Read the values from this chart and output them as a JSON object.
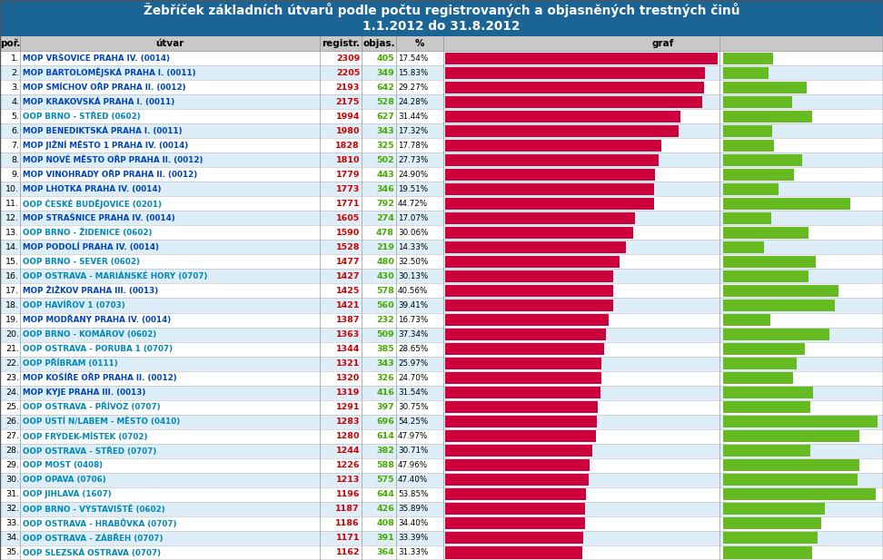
{
  "title_line1": "Žebříček základních útvarů podle počtu registrovaných a objasněných trestných činů",
  "title_line2": "1.1.2012 do 31.8.2012",
  "header_bg": "#1a6496",
  "col_header_bg": "#c8c8c8",
  "row_bg_even": "#ffffff",
  "row_bg_odd": "#ddeef8",
  "red_bar_color": "#cc003c",
  "green_bar_color": "#66bb22",
  "text_color_red": "#cc0000",
  "text_color_green": "#44aa00",
  "text_color_mop": "#0044bb",
  "text_color_oop": "#0088bb",
  "rows": [
    {
      "por": 1,
      "utvar": "MOP VRŠOVICE PRAHA IV. (0014)",
      "registr": 2309,
      "objas": 405,
      "pct": 17.54
    },
    {
      "por": 2,
      "utvar": "MOP BARTOLOMĚJSKÁ PRAHA I. (0011)",
      "registr": 2205,
      "objas": 349,
      "pct": 15.83
    },
    {
      "por": 3,
      "utvar": "MOP SMÍCHOV OŘP PRAHA II. (0012)",
      "registr": 2193,
      "objas": 642,
      "pct": 29.27
    },
    {
      "por": 4,
      "utvar": "MOP KRAKOVSKÁ PRAHA I. (0011)",
      "registr": 2175,
      "objas": 528,
      "pct": 24.28
    },
    {
      "por": 5,
      "utvar": "OOP BRNO - STŘED (0602)",
      "registr": 1994,
      "objas": 627,
      "pct": 31.44
    },
    {
      "por": 6,
      "utvar": "MOP BENEDIKTSKÁ PRAHA I. (0011)",
      "registr": 1980,
      "objas": 343,
      "pct": 17.32
    },
    {
      "por": 7,
      "utvar": "MOP JIŽNÍ MĚSTO 1 PRAHA IV. (0014)",
      "registr": 1828,
      "objas": 325,
      "pct": 17.78
    },
    {
      "por": 8,
      "utvar": "MOP NOVÉ MĚSTO OŘP PRAHA II. (0012)",
      "registr": 1810,
      "objas": 502,
      "pct": 27.73
    },
    {
      "por": 9,
      "utvar": "MOP VINOHRADY OŘP PRAHA II. (0012)",
      "registr": 1779,
      "objas": 443,
      "pct": 24.9
    },
    {
      "por": 10,
      "utvar": "MOP LHOTKA PRAHA IV. (0014)",
      "registr": 1773,
      "objas": 346,
      "pct": 19.51
    },
    {
      "por": 11,
      "utvar": "OOP ČESKÉ BUDĚJOVICE (0201)",
      "registr": 1771,
      "objas": 792,
      "pct": 44.72
    },
    {
      "por": 12,
      "utvar": "MOP STRAŠNICE PRAHA IV. (0014)",
      "registr": 1605,
      "objas": 274,
      "pct": 17.07
    },
    {
      "por": 13,
      "utvar": "OOP BRNO - ŽIDENICE (0602)",
      "registr": 1590,
      "objas": 478,
      "pct": 30.06
    },
    {
      "por": 14,
      "utvar": "MOP PODOLÍ PRAHA IV. (0014)",
      "registr": 1528,
      "objas": 219,
      "pct": 14.33
    },
    {
      "por": 15,
      "utvar": "OOP BRNO - SEVER (0602)",
      "registr": 1477,
      "objas": 480,
      "pct": 32.5
    },
    {
      "por": 16,
      "utvar": "OOP OSTRAVA - MARIÁNSKÉ HORY (0707)",
      "registr": 1427,
      "objas": 430,
      "pct": 30.13
    },
    {
      "por": 17,
      "utvar": "MOP ŽIŽKOV PRAHA III. (0013)",
      "registr": 1425,
      "objas": 578,
      "pct": 40.56
    },
    {
      "por": 18,
      "utvar": "OOP HAVÍŘOV 1 (0703)",
      "registr": 1421,
      "objas": 560,
      "pct": 39.41
    },
    {
      "por": 19,
      "utvar": "MOP MODŘANY PRAHA IV. (0014)",
      "registr": 1387,
      "objas": 232,
      "pct": 16.73
    },
    {
      "por": 20,
      "utvar": "OOP BRNO - KOMÁROV (0602)",
      "registr": 1363,
      "objas": 509,
      "pct": 37.34
    },
    {
      "por": 21,
      "utvar": "OOP OSTRAVA - PORUBA 1 (0707)",
      "registr": 1344,
      "objas": 385,
      "pct": 28.65
    },
    {
      "por": 22,
      "utvar": "OOP PŘÍBRAM (0111)",
      "registr": 1321,
      "objas": 343,
      "pct": 25.97
    },
    {
      "por": 23,
      "utvar": "MOP KOŠÍŘE OŘP PRAHA II. (0012)",
      "registr": 1320,
      "objas": 326,
      "pct": 24.7
    },
    {
      "por": 24,
      "utvar": "MOP KYJE PRAHA III. (0013)",
      "registr": 1319,
      "objas": 416,
      "pct": 31.54
    },
    {
      "por": 25,
      "utvar": "OOP OSTRAVA - PŘÍVOZ (0707)",
      "registr": 1291,
      "objas": 397,
      "pct": 30.75
    },
    {
      "por": 26,
      "utvar": "OOP ÚSTÍ N/LABEM - MĚSTO (0410)",
      "registr": 1283,
      "objas": 696,
      "pct": 54.25
    },
    {
      "por": 27,
      "utvar": "OOP FRÝDEK-MÍSTEK (0702)",
      "registr": 1280,
      "objas": 614,
      "pct": 47.97
    },
    {
      "por": 28,
      "utvar": "OOP OSTRAVA - STŘED (0707)",
      "registr": 1244,
      "objas": 382,
      "pct": 30.71
    },
    {
      "por": 29,
      "utvar": "OOP MOST (0408)",
      "registr": 1226,
      "objas": 588,
      "pct": 47.96
    },
    {
      "por": 30,
      "utvar": "OOP OPAVA (0706)",
      "registr": 1213,
      "objas": 575,
      "pct": 47.4
    },
    {
      "por": 31,
      "utvar": "OOP JIHLAVA (1607)",
      "registr": 1196,
      "objas": 644,
      "pct": 53.85
    },
    {
      "por": 32,
      "utvar": "OOP BRNO - VÝSTAVIŠTĚ (0602)",
      "registr": 1187,
      "objas": 426,
      "pct": 35.89
    },
    {
      "por": 33,
      "utvar": "OOP OSTRAVA - HRABŮVKA (0707)",
      "registr": 1186,
      "objas": 408,
      "pct": 34.4
    },
    {
      "por": 34,
      "utvar": "OOP OSTRAVA - ZÁBŘEH (0707)",
      "registr": 1171,
      "objas": 391,
      "pct": 33.39
    },
    {
      "por": 35,
      "utvar": "OOP SLEZSKÁ OSTRAVA (0707)",
      "registr": 1162,
      "objas": 364,
      "pct": 31.33
    }
  ]
}
